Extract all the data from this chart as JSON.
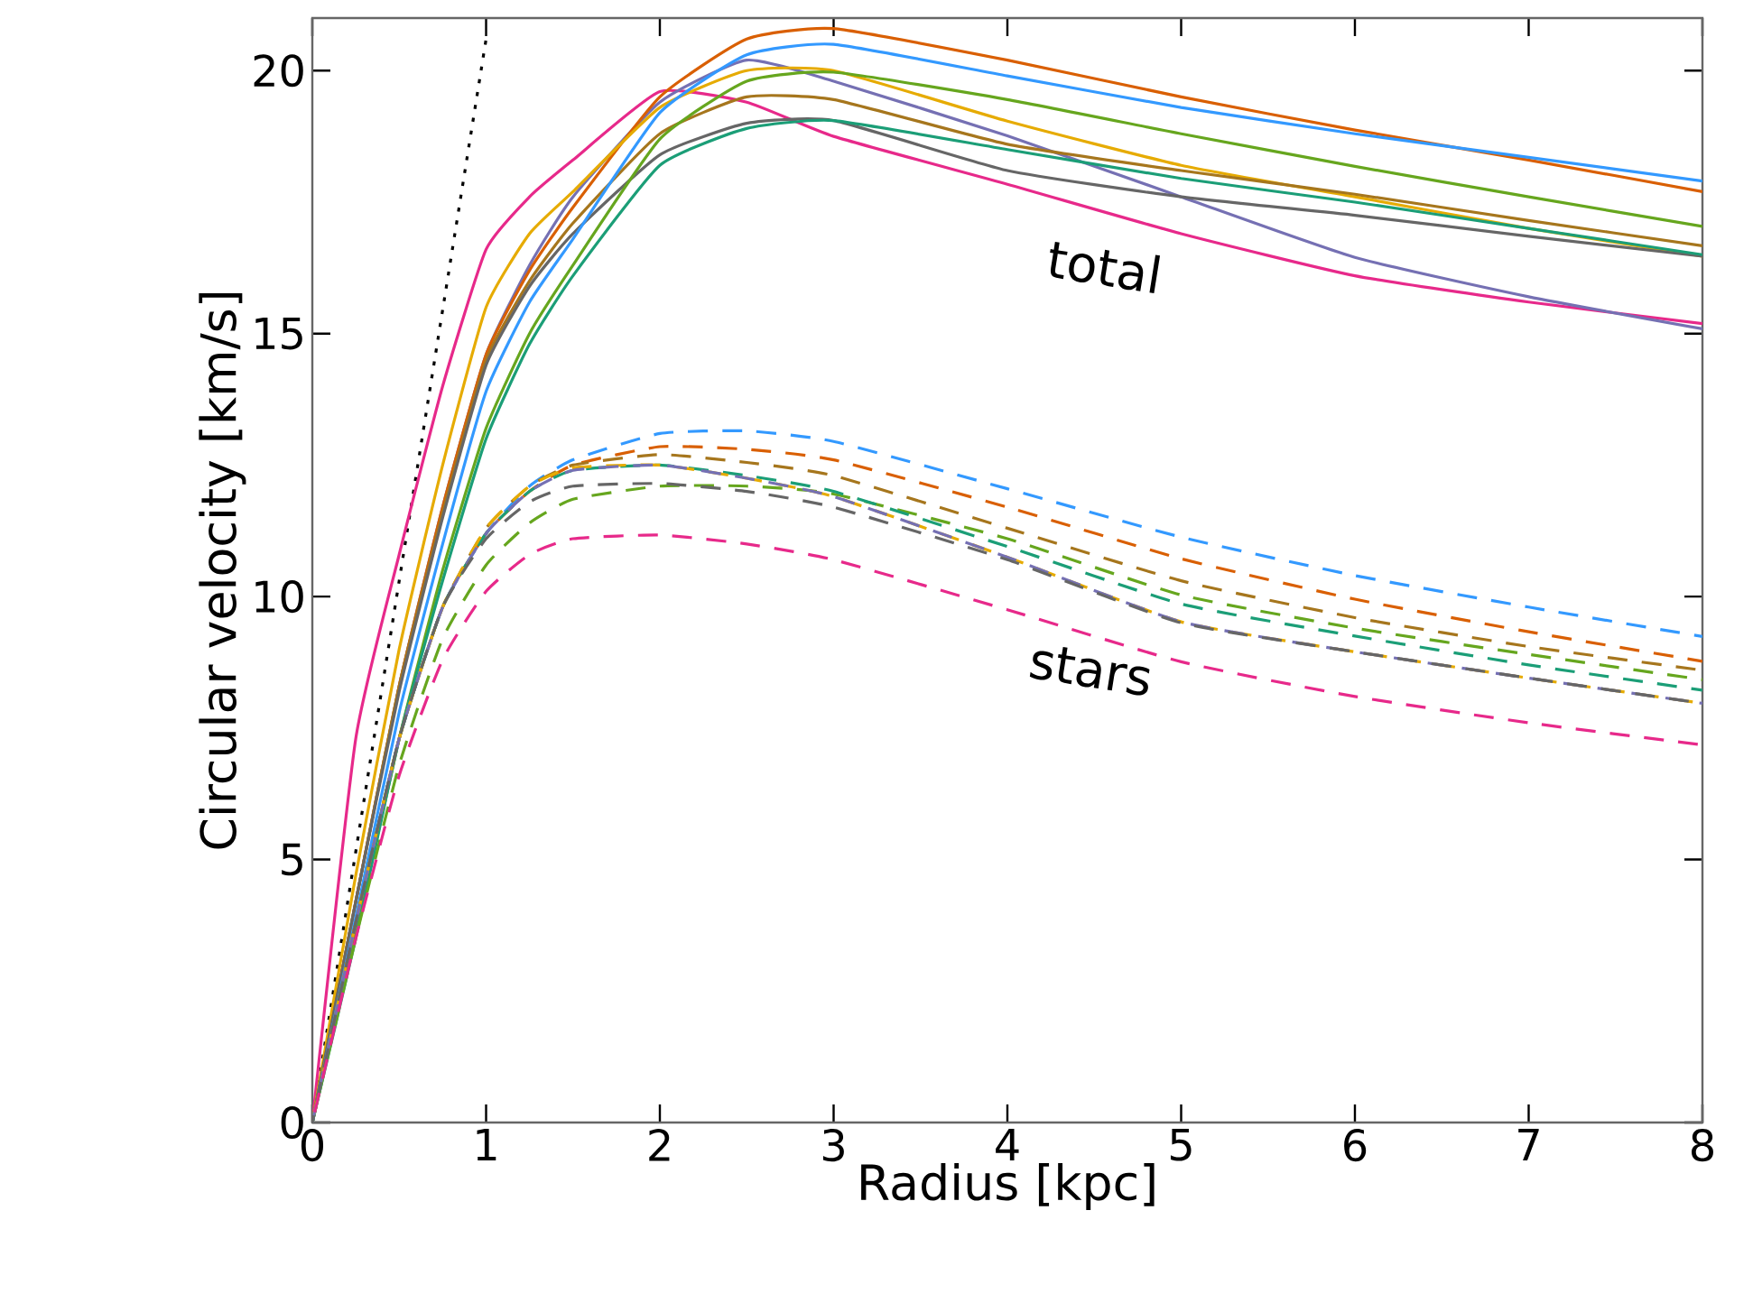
{
  "chart_data": {
    "type": "line",
    "xlabel": "Radius [kpc]",
    "ylabel": "Circular velocity [km/s]",
    "xlim": [
      0,
      8
    ],
    "ylim": [
      0,
      21
    ],
    "xticks": [
      0,
      1,
      2,
      3,
      4,
      5,
      6,
      7,
      8
    ],
    "yticks": [
      0,
      5,
      10,
      15,
      20
    ],
    "annotations": [
      "total",
      "stars"
    ],
    "series": [
      {
        "color": "#000000",
        "line_style": "dotted",
        "x": [
          0,
          1
        ],
        "values": [
          0,
          20.6
        ]
      },
      {
        "color": "#e7298a",
        "line_style": "solid",
        "x": [
          0,
          0.25,
          0.5,
          0.75,
          1,
          1.25,
          1.5,
          2,
          2.5,
          3,
          4,
          5,
          6,
          7,
          8
        ],
        "values": [
          0,
          7.3,
          10.8,
          14.0,
          16.6,
          17.6,
          18.3,
          19.6,
          19.4,
          18.75,
          17.84,
          16.9,
          16.1,
          15.6,
          15.19
        ]
      },
      {
        "color": "#7570b3",
        "line_style": "solid",
        "x": [
          0,
          0.25,
          0.5,
          0.75,
          1,
          1.25,
          1.5,
          2,
          2.5,
          3,
          4,
          5,
          6,
          7,
          8
        ],
        "values": [
          0,
          4.2,
          8.3,
          11.7,
          14.6,
          16.3,
          17.6,
          19.4,
          20.2,
          19.8,
          18.76,
          17.6,
          16.45,
          15.7,
          15.09
        ]
      },
      {
        "color": "#d95f02",
        "line_style": "solid",
        "x": [
          0,
          0.25,
          0.5,
          0.75,
          1,
          1.25,
          1.5,
          2,
          2.5,
          3,
          4,
          5,
          6,
          7,
          8
        ],
        "values": [
          0,
          4.2,
          8.3,
          11.7,
          14.6,
          16.2,
          17.4,
          19.5,
          20.6,
          20.8,
          20.2,
          19.5,
          18.87,
          18.3,
          17.7
        ]
      },
      {
        "color": "#e6ab02",
        "line_style": "solid",
        "x": [
          0,
          0.25,
          0.5,
          0.75,
          1,
          1.25,
          1.5,
          2,
          2.5,
          3,
          4,
          5,
          6,
          7,
          8
        ],
        "values": [
          0,
          4.7,
          9.0,
          12.5,
          15.5,
          16.9,
          17.7,
          19.3,
          20.0,
          20.0,
          19.04,
          18.2,
          17.6,
          17.0,
          16.47
        ]
      },
      {
        "color": "#a6761d",
        "line_style": "solid",
        "x": [
          0,
          0.25,
          0.5,
          0.75,
          1,
          1.25,
          1.5,
          2,
          2.5,
          3,
          4,
          5,
          6,
          7,
          8
        ],
        "values": [
          0,
          4.2,
          8.3,
          11.6,
          14.5,
          16.0,
          17.1,
          18.8,
          19.5,
          19.45,
          18.6,
          18.1,
          17.65,
          17.15,
          16.67
        ]
      },
      {
        "color": "#666666",
        "line_style": "solid",
        "x": [
          0,
          0.25,
          0.5,
          0.75,
          1,
          1.25,
          1.5,
          2,
          2.5,
          3,
          4,
          5,
          6,
          7,
          8
        ],
        "values": [
          0,
          4.2,
          8.2,
          11.5,
          14.4,
          15.9,
          16.9,
          18.4,
          19.0,
          19.05,
          18.1,
          17.6,
          17.25,
          16.85,
          16.47
        ]
      },
      {
        "color": "#3399ff",
        "line_style": "solid",
        "x": [
          0,
          0.25,
          0.5,
          0.75,
          1,
          1.25,
          1.5,
          2,
          2.5,
          3,
          4,
          5,
          6,
          7,
          8
        ],
        "values": [
          0,
          3.9,
          7.8,
          11.0,
          13.9,
          15.6,
          16.8,
          19.2,
          20.3,
          20.5,
          19.9,
          19.3,
          18.8,
          18.35,
          17.9
        ]
      },
      {
        "color": "#66a61e",
        "line_style": "solid",
        "x": [
          0,
          0.25,
          0.5,
          0.75,
          1,
          1.25,
          1.5,
          2,
          2.5,
          3,
          4,
          5,
          6,
          7,
          8
        ],
        "values": [
          0,
          3.6,
          7.3,
          10.5,
          13.2,
          15.0,
          16.3,
          18.7,
          19.8,
          19.97,
          19.45,
          18.8,
          18.18,
          17.6,
          17.04
        ]
      },
      {
        "color": "#1b9e77",
        "line_style": "solid",
        "x": [
          0,
          0.25,
          0.5,
          0.75,
          1,
          1.25,
          1.5,
          2,
          2.5,
          3,
          4,
          5,
          6,
          7,
          8
        ],
        "values": [
          0,
          3.5,
          7.3,
          10.3,
          13.0,
          14.8,
          16.1,
          18.2,
          18.9,
          19.05,
          18.5,
          17.95,
          17.5,
          17.0,
          16.5
        ]
      },
      {
        "color": "#3399ff",
        "line_style": "dashed",
        "x": [
          0,
          0.25,
          0.5,
          0.75,
          1,
          1.25,
          1.5,
          2,
          2.5,
          3,
          4,
          5,
          6,
          7,
          8
        ],
        "values": [
          0,
          3.8,
          7.3,
          9.8,
          11.2,
          12.1,
          12.6,
          13.1,
          13.15,
          12.95,
          12.05,
          11.13,
          10.4,
          9.8,
          9.24
        ]
      },
      {
        "color": "#d95f02",
        "line_style": "dashed",
        "x": [
          0,
          0.25,
          0.5,
          0.75,
          1,
          1.25,
          1.5,
          2,
          2.5,
          3,
          4,
          5,
          6,
          7,
          8
        ],
        "values": [
          0,
          3.8,
          7.3,
          9.8,
          11.2,
          12.0,
          12.5,
          12.85,
          12.8,
          12.6,
          11.7,
          10.72,
          9.95,
          9.33,
          8.77
        ]
      },
      {
        "color": "#a6761d",
        "line_style": "dashed",
        "x": [
          0,
          0.25,
          0.5,
          0.75,
          1,
          1.25,
          1.5,
          2,
          2.5,
          3,
          4,
          5,
          6,
          7,
          8
        ],
        "values": [
          0,
          3.8,
          7.3,
          9.8,
          11.3,
          12.1,
          12.5,
          12.7,
          12.55,
          12.3,
          11.3,
          10.3,
          9.6,
          9.05,
          8.6
        ]
      },
      {
        "color": "#66a61e",
        "line_style": "dashed",
        "x": [
          0,
          0.25,
          0.5,
          0.75,
          1,
          1.25,
          1.5,
          2,
          2.5,
          3,
          4,
          5,
          6,
          7,
          8
        ],
        "values": [
          0,
          3.5,
          6.8,
          9.2,
          10.6,
          11.4,
          11.85,
          12.1,
          12.1,
          11.95,
          11.1,
          10.03,
          9.4,
          8.9,
          8.42
        ]
      },
      {
        "color": "#1b9e77",
        "line_style": "dashed",
        "x": [
          0,
          0.25,
          0.5,
          0.75,
          1,
          1.25,
          1.5,
          2,
          2.5,
          3,
          4,
          5,
          6,
          7,
          8
        ],
        "values": [
          0,
          3.8,
          7.3,
          9.8,
          11.2,
          12.0,
          12.4,
          12.5,
          12.3,
          12.0,
          10.95,
          9.86,
          9.25,
          8.7,
          8.22
        ]
      },
      {
        "color": "#e6ab02",
        "line_style": "dashed",
        "x": [
          0,
          0.25,
          0.5,
          0.75,
          1,
          1.25,
          1.5,
          2,
          2.5,
          3,
          4,
          5,
          6,
          7,
          8
        ],
        "values": [
          0,
          3.8,
          7.3,
          9.8,
          11.3,
          12.1,
          12.45,
          12.5,
          12.25,
          11.9,
          10.75,
          9.52,
          8.95,
          8.45,
          7.97
        ]
      },
      {
        "color": "#7570b3",
        "line_style": "dashed",
        "x": [
          0,
          0.25,
          0.5,
          0.75,
          1,
          1.25,
          1.5,
          2,
          2.5,
          3,
          4,
          5,
          6,
          7,
          8
        ],
        "values": [
          0,
          3.8,
          7.3,
          9.8,
          11.2,
          12.0,
          12.4,
          12.5,
          12.25,
          11.9,
          10.75,
          9.52,
          8.95,
          8.45,
          7.97
        ]
      },
      {
        "color": "#666666",
        "line_style": "dashed",
        "x": [
          0,
          0.25,
          0.5,
          0.75,
          1,
          1.25,
          1.5,
          2,
          2.5,
          3,
          4,
          5,
          6,
          7,
          8
        ],
        "values": [
          0,
          3.8,
          7.3,
          9.8,
          11.1,
          11.8,
          12.1,
          12.15,
          12.0,
          11.7,
          10.7,
          9.5,
          8.95,
          8.45,
          7.97
        ]
      },
      {
        "color": "#e7298a",
        "line_style": "dashed",
        "x": [
          0,
          0.25,
          0.5,
          0.75,
          1,
          1.25,
          1.5,
          2,
          2.5,
          3,
          4,
          5,
          6,
          7,
          8
        ],
        "values": [
          0,
          3.5,
          6.6,
          8.8,
          10.1,
          10.8,
          11.1,
          11.17,
          11.0,
          10.7,
          9.75,
          8.76,
          8.1,
          7.6,
          7.18
        ]
      }
    ]
  }
}
